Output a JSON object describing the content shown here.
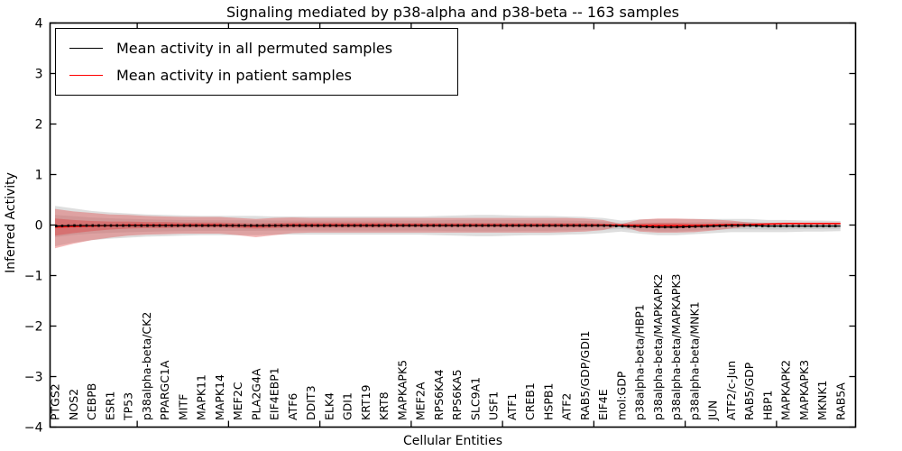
{
  "figure": {
    "title": "Signaling mediated by p38-alpha and p38-beta -- 163 samples",
    "xlabel": "Cellular Entities",
    "ylabel": "Inferred Activity"
  },
  "legend": {
    "position": "upper left",
    "items": [
      {
        "label": "Mean activity in all permuted samples",
        "color": "#000000"
      },
      {
        "label": "Mean activity in patient samples",
        "color": "#ff0000"
      }
    ]
  },
  "chart_data": {
    "type": "line",
    "title": "Signaling mediated by p38-alpha and p38-beta -- 163 samples",
    "xlabel": "Cellular Entities",
    "ylabel": "Inferred Activity",
    "ylim": [
      -4,
      4
    ],
    "yticks": [
      4,
      3,
      2,
      1,
      0,
      -1,
      -2,
      -3,
      -4
    ],
    "grid": false,
    "legend_position": "upper left",
    "categories": [
      "PTGS2",
      "NOS2",
      "CEBPB",
      "ESR1",
      "TP53",
      "p38alpha-beta/CK2",
      "PPARGC1A",
      "MITF",
      "MAPK11",
      "MAPK14",
      "MEF2C",
      "PLA2G4A",
      "EIF4EBP1",
      "ATF6",
      "DDIT3",
      "ELK4",
      "GDI1",
      "KRT19",
      "KRT8",
      "MAPKAPK5",
      "MEF2A",
      "RPS6KA4",
      "RPS6KA5",
      "SLC9A1",
      "USF1",
      "ATF1",
      "CREB1",
      "HSPB1",
      "ATF2",
      "RAB5/GDP/GDI1",
      "EIF4E",
      "mol:GDP",
      "p38alpha-beta/HBP1",
      "p38alpha-beta/MAPKAPK2",
      "p38alpha-beta/MAPKAPK3",
      "p38alpha-beta/MNK1",
      "JUN",
      "ATF2/c-Jun",
      "RAB5/GDP",
      "HBP1",
      "MAPKAPK2",
      "MAPKAPK3",
      "MKNK1",
      "RAB5A"
    ],
    "series": [
      {
        "name": "Mean activity in all permuted samples",
        "color": "#000000",
        "marker": "+",
        "values": [
          -0.02,
          -0.01,
          -0.01,
          -0.01,
          -0.01,
          -0.01,
          -0.01,
          -0.01,
          -0.01,
          -0.01,
          -0.01,
          -0.01,
          -0.01,
          -0.01,
          -0.01,
          -0.01,
          -0.01,
          -0.01,
          -0.01,
          -0.01,
          -0.01,
          -0.01,
          -0.01,
          -0.01,
          -0.01,
          -0.01,
          -0.01,
          -0.01,
          -0.01,
          -0.01,
          -0.01,
          -0.02,
          -0.03,
          -0.04,
          -0.04,
          -0.03,
          -0.02,
          -0.01,
          -0.01,
          -0.02,
          -0.02,
          -0.02,
          -0.02,
          -0.02
        ]
      },
      {
        "name": "Mean activity in patient samples",
        "color": "#ff0000",
        "marker": "none",
        "values": [
          -0.04,
          -0.03,
          -0.02,
          -0.01,
          0,
          0,
          0,
          0,
          0,
          0,
          -0.01,
          -0.02,
          -0.01,
          0,
          0,
          0,
          0,
          0,
          0,
          0,
          0,
          0,
          0,
          0,
          0,
          0,
          0,
          0,
          0,
          0,
          0,
          0,
          -0.01,
          -0.01,
          -0.01,
          -0.01,
          0,
          0.01,
          0.01,
          0.02,
          0.03,
          0.03,
          0.03,
          0.03
        ]
      }
    ],
    "bands": [
      {
        "name": "permuted-samples-std-band",
        "center_series": 0,
        "color": "rgba(0,0,0,0.13)",
        "half_width": [
          0.4,
          0.34,
          0.29,
          0.26,
          0.24,
          0.22,
          0.21,
          0.2,
          0.19,
          0.19,
          0.19,
          0.19,
          0.18,
          0.18,
          0.18,
          0.18,
          0.18,
          0.18,
          0.18,
          0.18,
          0.18,
          0.19,
          0.2,
          0.21,
          0.21,
          0.2,
          0.19,
          0.19,
          0.18,
          0.17,
          0.15,
          0.11,
          0.14,
          0.16,
          0.16,
          0.15,
          0.14,
          0.13,
          0.13,
          0.12,
          0.12,
          0.11,
          0.11,
          0.1
        ]
      },
      {
        "name": "patient-samples-std-band",
        "center_series": 1,
        "color": "rgba(222,40,40,0.33)",
        "upper_offset": [
          0.36,
          0.3,
          0.26,
          0.22,
          0.2,
          0.18,
          0.17,
          0.16,
          0.16,
          0.16,
          0.15,
          0.14,
          0.15,
          0.15,
          0.14,
          0.14,
          0.14,
          0.14,
          0.14,
          0.14,
          0.14,
          0.14,
          0.14,
          0.14,
          0.14,
          0.14,
          0.14,
          0.14,
          0.14,
          0.13,
          0.1,
          0.02,
          0.12,
          0.14,
          0.14,
          0.13,
          0.11,
          0.08,
          0.04,
          0.02,
          0.02,
          0.02,
          0.02,
          0.02
        ],
        "lower_offset": [
          0.42,
          0.34,
          0.28,
          0.24,
          0.21,
          0.19,
          0.18,
          0.17,
          0.17,
          0.17,
          0.19,
          0.22,
          0.19,
          0.16,
          0.15,
          0.15,
          0.15,
          0.15,
          0.15,
          0.15,
          0.15,
          0.15,
          0.15,
          0.15,
          0.15,
          0.15,
          0.15,
          0.15,
          0.14,
          0.13,
          0.1,
          0.02,
          0.12,
          0.14,
          0.14,
          0.13,
          0.11,
          0.08,
          0.04,
          0.02,
          0.02,
          0.02,
          0.02,
          0.02
        ]
      },
      {
        "name": "patient-samples-inner-band",
        "center_series": 1,
        "color": "rgba(222,40,40,0.33)",
        "half_width": [
          0.17,
          0.13,
          0.1,
          0.08,
          0.07,
          0.06,
          0.06,
          0.05,
          0.05,
          0.05,
          0.05,
          0.05,
          0.05,
          0.05,
          0.05,
          0.05,
          0.05,
          0.05,
          0.05,
          0.04,
          0.04,
          0.04,
          0.04,
          0.04,
          0.04,
          0.04,
          0.04,
          0.04,
          0.04,
          0.04,
          0.03,
          0.01,
          0.04,
          0.05,
          0.05,
          0.04,
          0.03,
          0.02,
          0.01,
          0.01,
          0.01,
          0.01,
          0.01,
          0.01
        ]
      }
    ]
  }
}
